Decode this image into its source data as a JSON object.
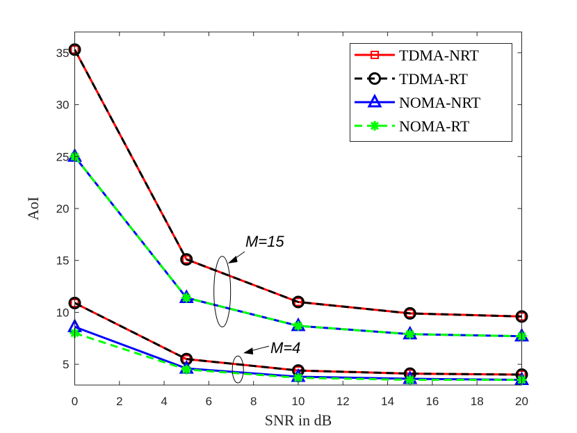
{
  "chart_data": {
    "type": "line",
    "title": "",
    "xlabel": "SNR in dB",
    "ylabel": "AoI",
    "xlim": [
      0,
      20
    ],
    "ylim": [
      3,
      37
    ],
    "xticks": [
      0,
      2,
      4,
      6,
      8,
      10,
      12,
      14,
      16,
      18,
      20
    ],
    "yticks": [
      5,
      10,
      15,
      20,
      25,
      30,
      35
    ],
    "grid": false,
    "legend_position": "top-right",
    "x": [
      0,
      5,
      10,
      15,
      20
    ],
    "series": [
      {
        "name": "TDMA-NRT",
        "group": "M=15",
        "color": "#ff0000",
        "style": "solid",
        "marker": "square",
        "values": [
          35.3,
          15.1,
          11.0,
          9.9,
          9.6
        ]
      },
      {
        "name": "TDMA-RT",
        "group": "M=15",
        "color": "#000000",
        "style": "dashed",
        "marker": "circle",
        "values": [
          35.3,
          15.1,
          11.0,
          9.9,
          9.6
        ]
      },
      {
        "name": "NOMA-NRT",
        "group": "M=15",
        "color": "#0000ff",
        "style": "solid",
        "marker": "triangle",
        "values": [
          25.0,
          11.4,
          8.7,
          7.9,
          7.7
        ]
      },
      {
        "name": "NOMA-RT",
        "group": "M=15",
        "color": "#00ff00",
        "style": "dashed",
        "marker": "star",
        "values": [
          25.0,
          11.4,
          8.7,
          7.9,
          7.7
        ]
      },
      {
        "name": "TDMA-NRT",
        "group": "M=4",
        "color": "#ff0000",
        "style": "solid",
        "marker": "square",
        "values": [
          10.9,
          5.5,
          4.4,
          4.1,
          4.0
        ]
      },
      {
        "name": "TDMA-RT",
        "group": "M=4",
        "color": "#000000",
        "style": "dashed",
        "marker": "circle",
        "values": [
          10.9,
          5.5,
          4.4,
          4.1,
          4.0
        ]
      },
      {
        "name": "NOMA-NRT",
        "group": "M=4",
        "color": "#0000ff",
        "style": "solid",
        "marker": "triangle",
        "values": [
          8.6,
          4.6,
          3.8,
          3.6,
          3.5
        ]
      },
      {
        "name": "NOMA-RT",
        "group": "M=4",
        "color": "#00ff00",
        "style": "dashed",
        "marker": "star",
        "values": [
          8.0,
          4.5,
          3.7,
          3.5,
          3.5
        ]
      }
    ],
    "legend": [
      {
        "label": "TDMA-NRT",
        "color": "#ff0000",
        "style": "solid",
        "marker": "square"
      },
      {
        "label": "TDMA-RT",
        "color": "#000000",
        "style": "dashed",
        "marker": "circle"
      },
      {
        "label": "NOMA-NRT",
        "color": "#0000ff",
        "style": "solid",
        "marker": "triangle"
      },
      {
        "label": "NOMA-RT",
        "color": "#00ff00",
        "style": "dashed",
        "marker": "star"
      }
    ],
    "annotations": [
      {
        "text": "M=15",
        "target_x": 6.6,
        "target_y_range": [
          8.6,
          15.4
        ]
      },
      {
        "text": "M=4",
        "target_x": 7.3,
        "target_y_range": [
          3.2,
          5.8
        ]
      }
    ]
  }
}
